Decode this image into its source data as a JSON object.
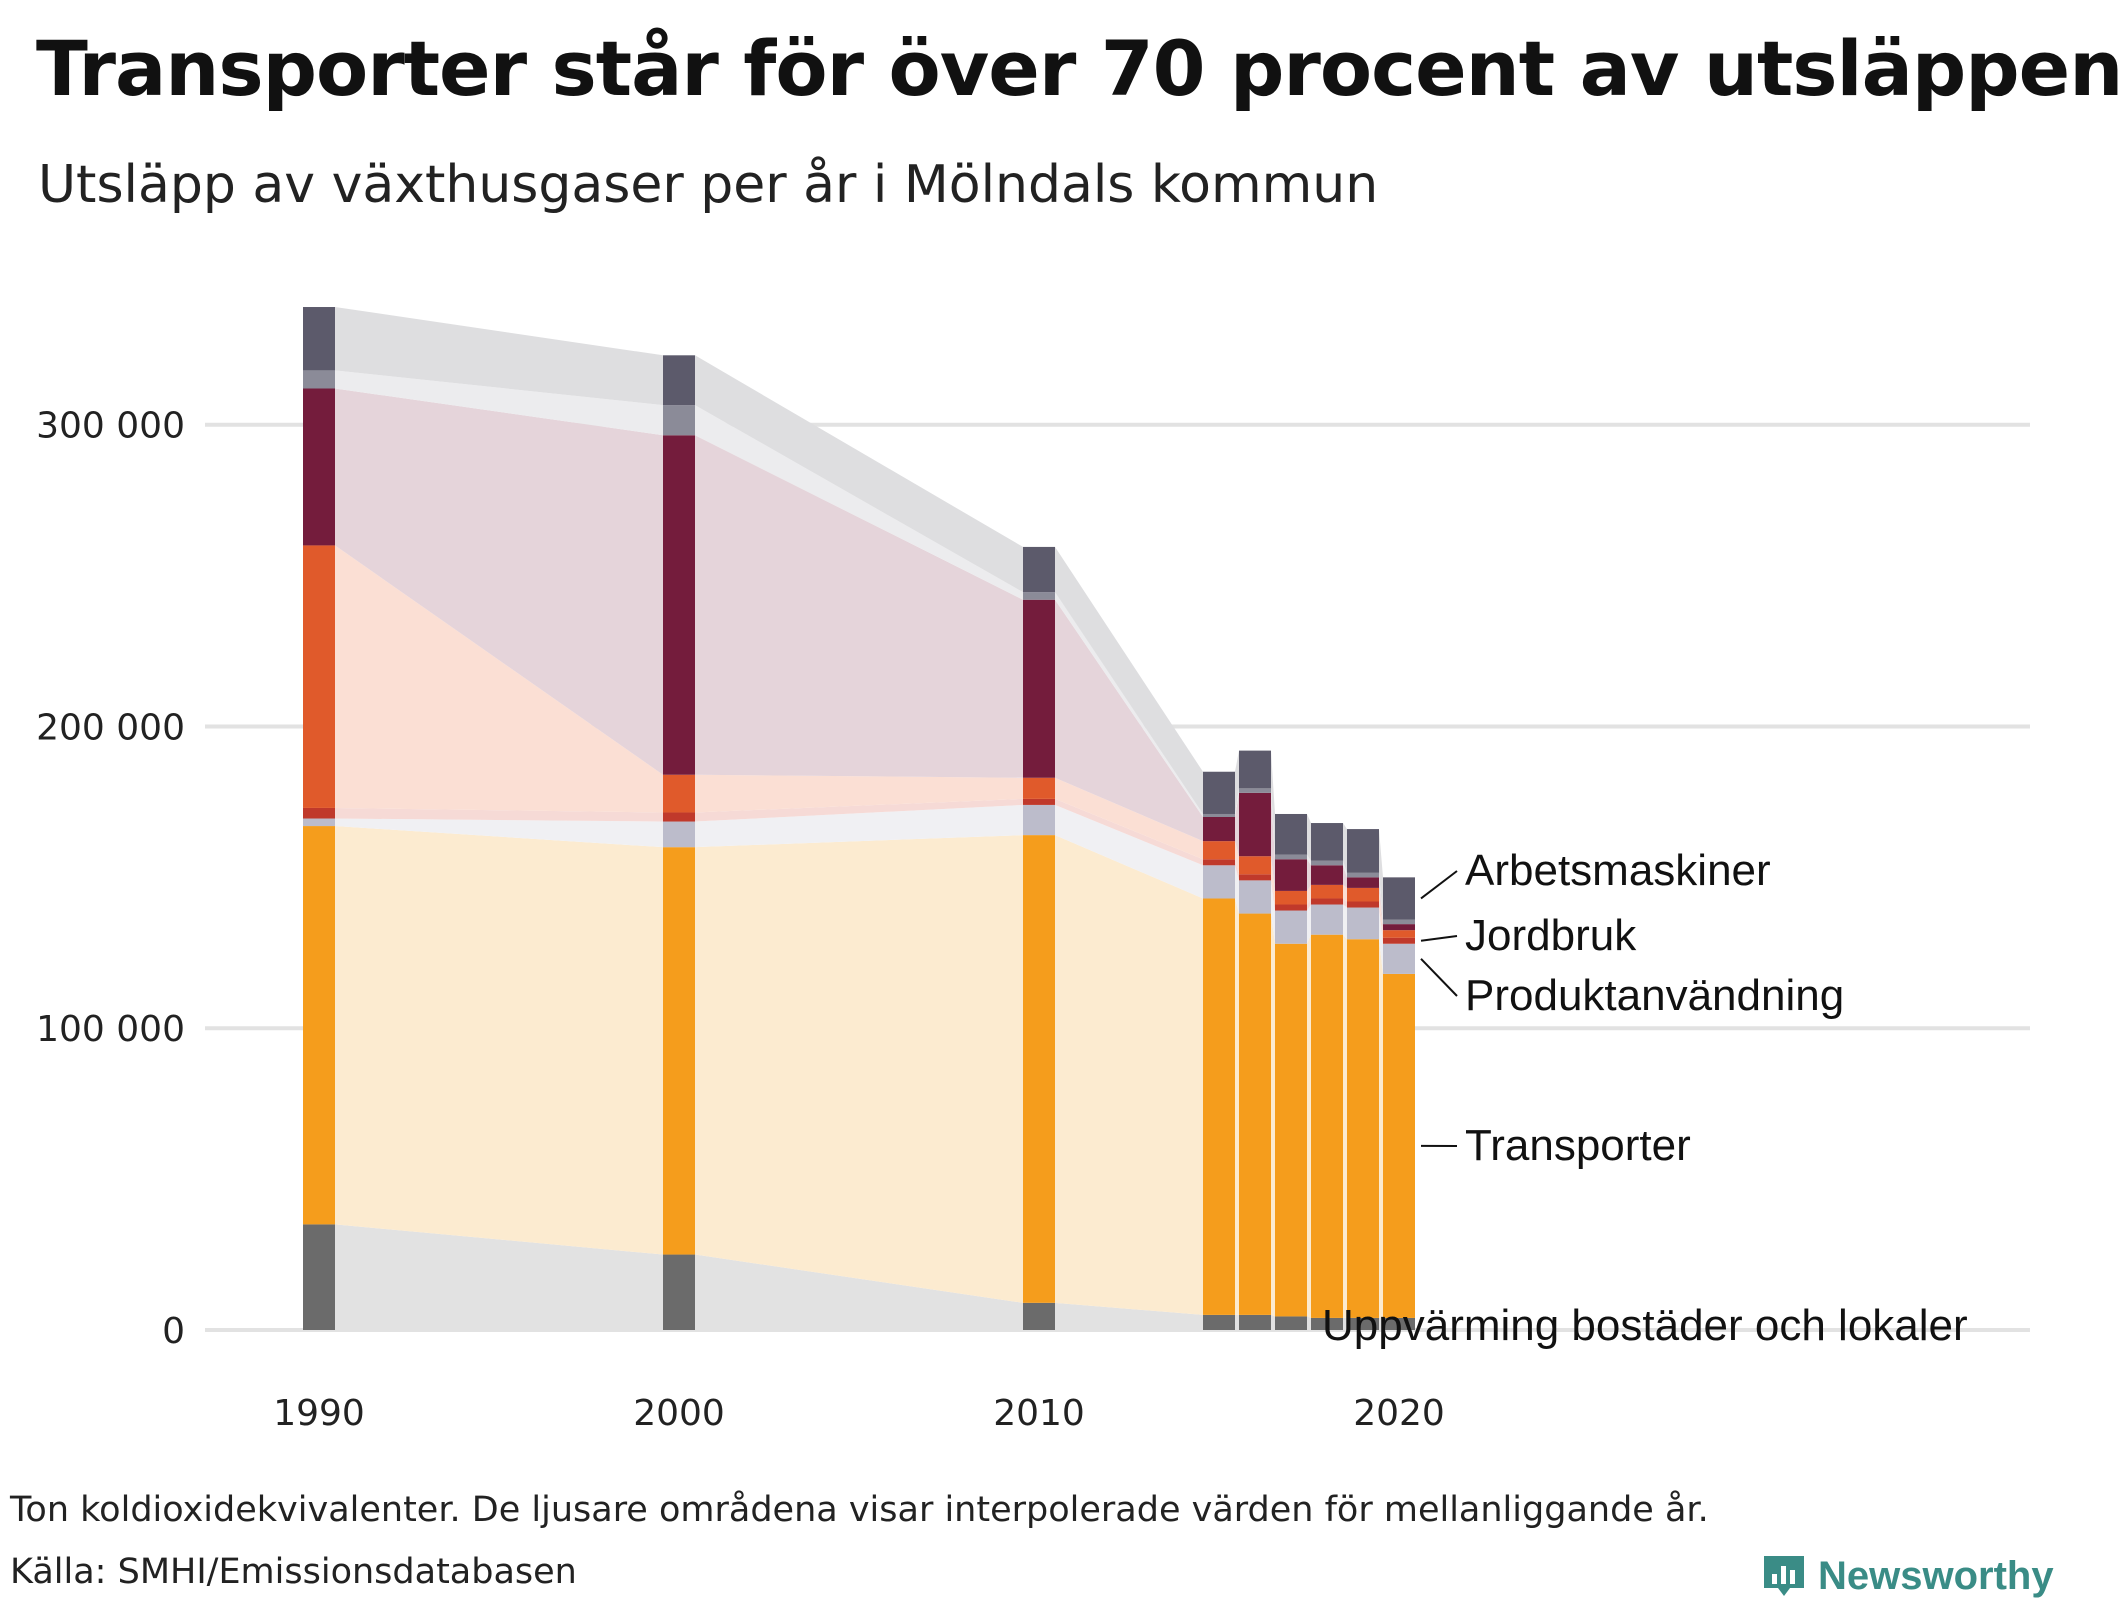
{
  "title": "Transporter står för över 70 procent av utsläppen",
  "subtitle": "Utsläpp av växthusgaser per år i Mölndals kommun",
  "footnote": "Ton koldioxidekvivalenter. De ljusare områdena visar interpolerade värden för mellanliggande år.",
  "source": "Källa: SMHI/Emissionsdatabasen",
  "brand": "Newsworthy",
  "chart_data": {
    "type": "bar",
    "stacked": true,
    "ylim": [
      0,
      340000
    ],
    "yticks": [
      0,
      100000,
      200000,
      300000
    ],
    "ytick_labels": [
      "0",
      "100 000",
      "200 000",
      "300 000"
    ],
    "xticks": [
      1990,
      2000,
      2010,
      2020
    ],
    "xtick_labels": [
      "1990",
      "2000",
      "2010",
      "2020"
    ],
    "grid": true,
    "x": [
      1990,
      2000,
      2010,
      2015,
      2016,
      2017,
      2018,
      2019,
      2020
    ],
    "series": [
      {
        "name": "Uppvärming bostäder och lokaler",
        "color": "#6b6b6b",
        "light": "#e2e2e2",
        "values": [
          35000,
          25000,
          9000,
          5000,
          5000,
          4500,
          4000,
          4000,
          4000
        ]
      },
      {
        "name": "Transporter",
        "color": "#f59d1c",
        "light": "#fcebd0",
        "values": [
          132000,
          135000,
          155000,
          138000,
          133000,
          123500,
          127000,
          125500,
          114000
        ]
      },
      {
        "name": "Produktanvändning",
        "color": "#bcbccb",
        "light": "#f0f0f3",
        "values": [
          2500,
          8500,
          10000,
          11000,
          11000,
          11000,
          10000,
          10500,
          10000
        ]
      },
      {
        "name": "Jordbruk",
        "color": "#c0392b",
        "light": "#f6dad6",
        "values": [
          3500,
          3000,
          2000,
          2000,
          2000,
          2000,
          2000,
          2000,
          2000
        ]
      },
      {
        "name": "",
        "color": "#e05a2b",
        "light": "#fbdfd4",
        "values": [
          87000,
          12500,
          7000,
          6000,
          6000,
          4500,
          4500,
          4500,
          2500
        ]
      },
      {
        "name": "",
        "color": "#741c3c",
        "light": "#e5d4da",
        "values": [
          52000,
          112500,
          59000,
          8000,
          21000,
          10500,
          6500,
          3500,
          2000
        ]
      },
      {
        "name": "",
        "color": "#8b8b98",
        "light": "#ececee",
        "values": [
          6000,
          10000,
          2500,
          1000,
          1500,
          1500,
          1500,
          1500,
          1500
        ]
      },
      {
        "name": "Arbetsmaskiner",
        "color": "#5c5a6b",
        "light": "#dedee0",
        "values": [
          21000,
          16500,
          15000,
          14000,
          12500,
          13500,
          12500,
          14500,
          14000
        ]
      }
    ],
    "end_labels": [
      "Arbetsmaskiner",
      "Jordbruk",
      "Produktanvändning",
      "Transporter",
      "Uppvärming bostäder och lokaler"
    ]
  }
}
